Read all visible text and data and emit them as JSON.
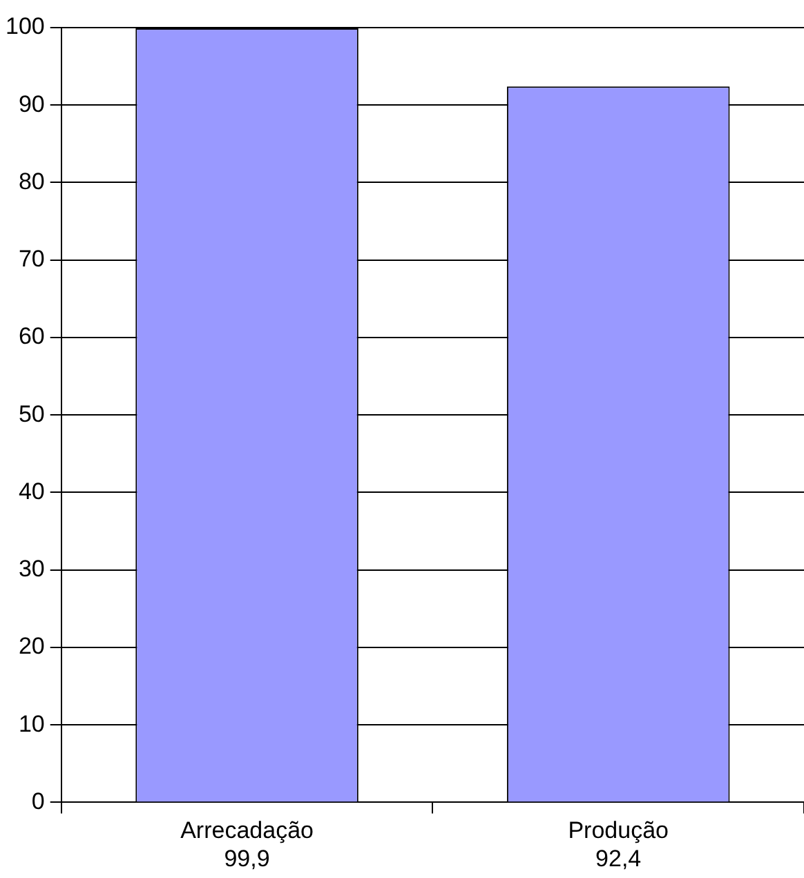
{
  "chart_data": {
    "type": "bar",
    "categories": [
      "Arrecadação",
      "Produção"
    ],
    "values": [
      99.9,
      92.4
    ],
    "value_labels": [
      "99,9",
      "92,4"
    ],
    "color": "#9999ff",
    "ylim": [
      0,
      100
    ],
    "yticks": [
      0,
      10,
      20,
      30,
      40,
      50,
      60,
      70,
      80,
      90,
      100
    ],
    "grid": "y"
  }
}
